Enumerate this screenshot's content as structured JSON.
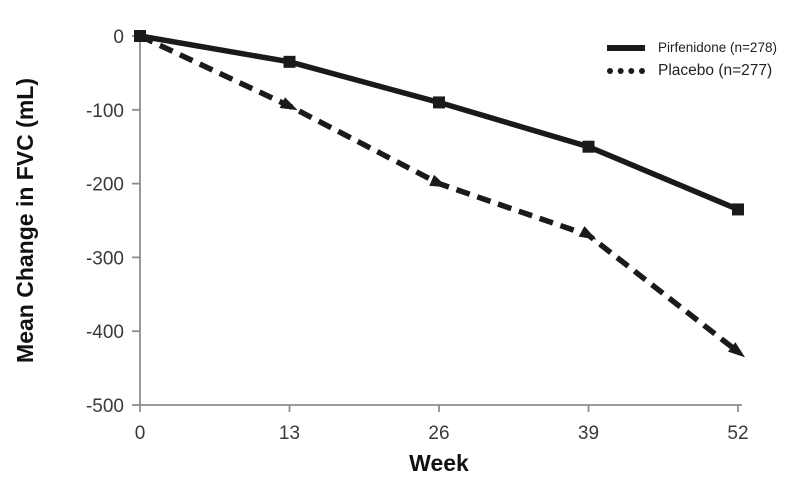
{
  "chart_data": {
    "type": "line",
    "title": "",
    "xlabel": "Week",
    "ylabel": "Mean Change in FVC (mL)",
    "x": [
      0,
      13,
      26,
      39,
      52
    ],
    "xticks": [
      0,
      13,
      26,
      39,
      52
    ],
    "yticks": [
      0,
      -100,
      -200,
      -300,
      -400,
      -500
    ],
    "xlim": [
      0,
      52
    ],
    "ylim": [
      -500,
      0
    ],
    "grid": false,
    "legend_position": "top-right",
    "series": [
      {
        "name": "Pirfenidone (n=278)",
        "values": [
          0,
          -35,
          -90,
          -150,
          -235
        ],
        "line_style": "solid",
        "marker": "square",
        "color": "#1a1a1a"
      },
      {
        "name": "Placebo (n=277)",
        "values": [
          0,
          -95,
          -200,
          -270,
          -428
        ],
        "line_style": "dashed",
        "marker": "triangle",
        "color": "#1a1a1a"
      }
    ],
    "colors": {
      "line": "#1a1a1a",
      "axis": "#8c8c8c",
      "tick_label": "#3a3a3a",
      "axis_title": "#111111",
      "background": "#ffffff"
    }
  }
}
